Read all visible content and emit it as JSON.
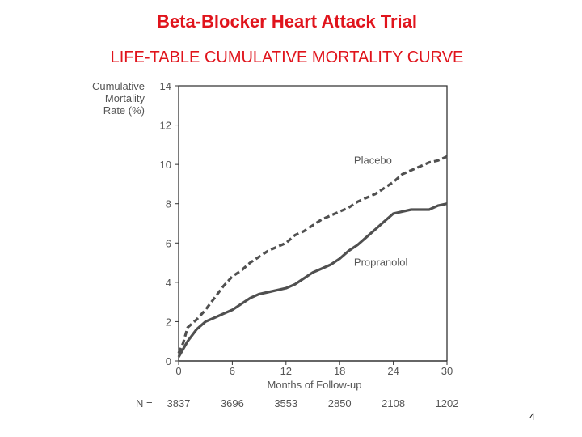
{
  "slide": {
    "title": "Beta-Blocker Heart Attack Trial",
    "subtitle": "LIFE-TABLE CUMULATIVE MORTALITY CURVE",
    "page_number": "4"
  },
  "colors": {
    "title": "#e0141c",
    "curve": "#505050",
    "axis": "#333333"
  },
  "chart_data": {
    "type": "line",
    "ylabel_lines": [
      "Cumulative",
      "Mortality",
      "Rate (%)"
    ],
    "xlabel": "Months of Follow-up",
    "xlim": [
      0,
      30
    ],
    "ylim": [
      0,
      14
    ],
    "x_ticks": [
      "0",
      "6",
      "12",
      "18",
      "24",
      "30"
    ],
    "y_ticks": [
      "0",
      "2",
      "4",
      "6",
      "8",
      "10",
      "12",
      "14"
    ],
    "grid": false,
    "n_prefix": "N = ",
    "n_at_risk": [
      "3837",
      "3696",
      "3553",
      "2850",
      "2108",
      "1202"
    ],
    "series": [
      {
        "name": "Placebo",
        "style": "dashed",
        "x": [
          0,
          0.5,
          1,
          2,
          3,
          4,
          5,
          6,
          7,
          8,
          9,
          10,
          11,
          12,
          13,
          14,
          15,
          16,
          17,
          18,
          19,
          20,
          21,
          22,
          23,
          24,
          25,
          26,
          27,
          28,
          29,
          30
        ],
        "y": [
          0.4,
          0.9,
          1.7,
          2.1,
          2.6,
          3.2,
          3.8,
          4.3,
          4.6,
          5.0,
          5.3,
          5.6,
          5.8,
          6.0,
          6.4,
          6.6,
          6.9,
          7.2,
          7.4,
          7.6,
          7.8,
          8.1,
          8.3,
          8.5,
          8.8,
          9.1,
          9.5,
          9.7,
          9.9,
          10.1,
          10.2,
          10.4
        ]
      },
      {
        "name": "Propranolol",
        "style": "solid",
        "x": [
          0,
          0.5,
          1,
          2,
          3,
          4,
          5,
          6,
          7,
          8,
          9,
          10,
          11,
          12,
          13,
          14,
          15,
          16,
          17,
          18,
          19,
          20,
          21,
          22,
          23,
          24,
          25,
          26,
          27,
          28,
          29,
          30
        ],
        "y": [
          0.2,
          0.6,
          1.0,
          1.6,
          2.0,
          2.2,
          2.4,
          2.6,
          2.9,
          3.2,
          3.4,
          3.5,
          3.6,
          3.7,
          3.9,
          4.2,
          4.5,
          4.7,
          4.9,
          5.2,
          5.6,
          5.9,
          6.3,
          6.7,
          7.1,
          7.5,
          7.6,
          7.7,
          7.7,
          7.7,
          7.9,
          8.0
        ]
      }
    ]
  }
}
